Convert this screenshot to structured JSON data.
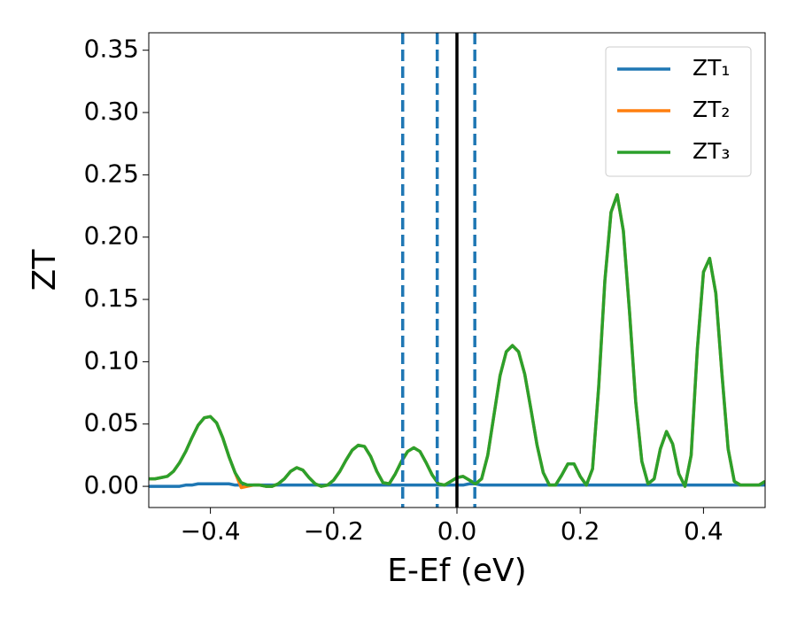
{
  "chart_data": {
    "type": "line",
    "xlabel": "E-Ef (eV)",
    "ylabel": "ZT",
    "xlim": [
      -0.5,
      0.5
    ],
    "ylim": [
      -0.017,
      0.364
    ],
    "xticks": [
      {
        "value": -0.4,
        "label": "−0.4"
      },
      {
        "value": -0.2,
        "label": "−0.2"
      },
      {
        "value": 0,
        "label": "0.0"
      },
      {
        "value": 0.2,
        "label": "0.2"
      },
      {
        "value": 0.4,
        "label": "0.4"
      }
    ],
    "yticks": [
      {
        "value": 0,
        "label": "0.00"
      },
      {
        "value": 0.05,
        "label": "0.05"
      },
      {
        "value": 0.1,
        "label": "0.10"
      },
      {
        "value": 0.15,
        "label": "0.15"
      },
      {
        "value": 0.2,
        "label": "0.20"
      },
      {
        "value": 0.25,
        "label": "0.25"
      },
      {
        "value": 0.3,
        "label": "0.30"
      },
      {
        "value": 0.35,
        "label": "0.35"
      }
    ],
    "grid": false,
    "legend": "upper right",
    "vlines": [
      {
        "x": -0.088,
        "color": "#1f77b4",
        "dashed": true
      },
      {
        "x": -0.032,
        "color": "#1f77b4",
        "dashed": true
      },
      {
        "x": 0,
        "color": "#000000",
        "dashed": false
      },
      {
        "x": 0.029,
        "color": "#1f77b4",
        "dashed": true
      }
    ],
    "x": [
      -0.5,
      -0.49,
      -0.48,
      -0.47,
      -0.46,
      -0.45,
      -0.44,
      -0.43,
      -0.42,
      -0.41,
      -0.4,
      -0.39,
      -0.38,
      -0.37,
      -0.36,
      -0.35,
      -0.34,
      -0.33,
      -0.32,
      -0.31,
      -0.3,
      -0.29,
      -0.28,
      -0.27,
      -0.26,
      -0.25,
      -0.24,
      -0.23,
      -0.22,
      -0.21,
      -0.2,
      -0.19,
      -0.18,
      -0.17,
      -0.16,
      -0.15,
      -0.14,
      -0.13,
      -0.12,
      -0.11,
      -0.1,
      -0.09,
      -0.08,
      -0.07,
      -0.06,
      -0.05,
      -0.04,
      -0.03,
      -0.02,
      -0.01,
      0,
      0.01,
      0.02,
      0.03,
      0.04,
      0.05,
      0.06,
      0.07,
      0.08,
      0.09,
      0.1,
      0.11,
      0.12,
      0.13,
      0.14,
      0.15,
      0.16,
      0.17,
      0.18,
      0.19,
      0.2,
      0.21,
      0.22,
      0.23,
      0.24,
      0.25,
      0.26,
      0.27,
      0.28,
      0.29,
      0.3,
      0.31,
      0.32,
      0.33,
      0.34,
      0.35,
      0.36,
      0.37,
      0.38,
      0.39,
      0.4,
      0.41,
      0.42,
      0.43,
      0.44,
      0.45,
      0.46,
      0.47,
      0.48,
      0.49,
      0.5
    ],
    "series": [
      {
        "name": "ZT₁",
        "color": "#1f77b4",
        "values": [
          0,
          0,
          0,
          0,
          0,
          0,
          0.001,
          0.001,
          0.002,
          0.002,
          0.002,
          0.002,
          0.002,
          0.002,
          0.001,
          0.001,
          0.001,
          0.001,
          0.001,
          0.001,
          0.001,
          0.001,
          0.001,
          0.001,
          0.001,
          0.001,
          0.001,
          0.001,
          0.001,
          0.001,
          0.001,
          0.001,
          0.001,
          0.001,
          0.001,
          0.001,
          0.001,
          0.001,
          0.001,
          0.001,
          0.001,
          0.001,
          0.001,
          0.001,
          0.001,
          0.001,
          0.001,
          0.001,
          0.001,
          0.001,
          0.001,
          0.001,
          0.002,
          0.002,
          0.001,
          0.001,
          0.001,
          0.001,
          0.001,
          0.001,
          0.001,
          0.001,
          0.001,
          0.001,
          0.001,
          0.001,
          0.001,
          0.001,
          0.001,
          0.001,
          0.001,
          0.001,
          0.001,
          0.001,
          0.001,
          0.001,
          0.001,
          0.001,
          0.001,
          0.001,
          0.001,
          0.001,
          0.001,
          0.001,
          0.001,
          0.001,
          0.001,
          0.001,
          0.001,
          0.001,
          0.001,
          0.001,
          0.001,
          0.001,
          0.001,
          0.001,
          0.001,
          0.001,
          0.001,
          0.001,
          0.001
        ]
      },
      {
        "name": "ZT₂",
        "color": "#ff7f0e",
        "values": [
          0.006,
          0.006,
          0.007,
          0.008,
          0.012,
          0.019,
          0.028,
          0.039,
          0.049,
          0.055,
          0.056,
          0.051,
          0.039,
          0.024,
          0.011,
          -0.001,
          0.0,
          0.001,
          0.001,
          0.0,
          0.0,
          0.002,
          0.006,
          0.012,
          0.015,
          0.013,
          0.007,
          0.002,
          0.0,
          0.001,
          0.005,
          0.012,
          0.021,
          0.029,
          0.033,
          0.032,
          0.024,
          0.012,
          0.003,
          0.002,
          0.01,
          0.02,
          0.028,
          0.031,
          0.028,
          0.019,
          0.009,
          0.002,
          0.001,
          0.004,
          0.007,
          0.008,
          0.005,
          0.002,
          0.006,
          0.025,
          0.057,
          0.089,
          0.108,
          0.113,
          0.108,
          0.09,
          0.062,
          0.033,
          0.011,
          0.001,
          0.001,
          0.009,
          0.018,
          0.018,
          0.008,
          0.001,
          0.014,
          0.08,
          0.165,
          0.22,
          0.234,
          0.205,
          0.14,
          0.068,
          0.02,
          0.002,
          0.006,
          0.03,
          0.044,
          0.034,
          0.01,
          0.0,
          0.025,
          0.11,
          0.172,
          0.183,
          0.155,
          0.09,
          0.03,
          0.004,
          0.001,
          0.001,
          0.001,
          0.001,
          0.004
        ]
      },
      {
        "name": "ZT₃",
        "color": "#2ca02c",
        "values": [
          0.006,
          0.006,
          0.007,
          0.008,
          0.012,
          0.019,
          0.028,
          0.039,
          0.049,
          0.055,
          0.056,
          0.051,
          0.039,
          0.024,
          0.011,
          0.003,
          0.001,
          0.001,
          0.001,
          0.0,
          0.0,
          0.002,
          0.006,
          0.012,
          0.015,
          0.013,
          0.007,
          0.002,
          0.0,
          0.001,
          0.005,
          0.012,
          0.021,
          0.029,
          0.033,
          0.032,
          0.024,
          0.012,
          0.003,
          0.002,
          0.01,
          0.02,
          0.028,
          0.031,
          0.028,
          0.019,
          0.009,
          0.002,
          0.001,
          0.004,
          0.007,
          0.008,
          0.005,
          0.002,
          0.006,
          0.025,
          0.057,
          0.089,
          0.108,
          0.113,
          0.108,
          0.09,
          0.062,
          0.033,
          0.011,
          0.001,
          0.001,
          0.009,
          0.018,
          0.018,
          0.008,
          0.001,
          0.014,
          0.08,
          0.165,
          0.22,
          0.234,
          0.205,
          0.14,
          0.068,
          0.02,
          0.002,
          0.006,
          0.03,
          0.044,
          0.034,
          0.01,
          0.0,
          0.025,
          0.11,
          0.172,
          0.183,
          0.155,
          0.09,
          0.03,
          0.004,
          0.001,
          0.001,
          0.001,
          0.001,
          0.004
        ]
      }
    ]
  }
}
